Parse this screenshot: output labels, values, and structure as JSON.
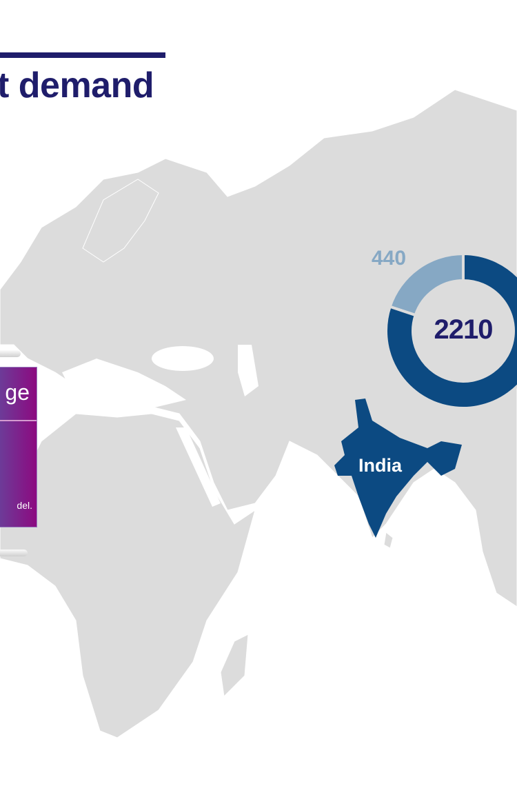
{
  "title": "t demand",
  "panel": {
    "heading": "ge",
    "footer": "del."
  },
  "donut": {
    "total_label": "2210",
    "segment_label": "440",
    "segments": [
      {
        "value": 440,
        "color": "#86a8c4"
      },
      {
        "value": 1770,
        "color": "#0c4a82"
      }
    ]
  },
  "region": {
    "name": "India",
    "highlight_color": "#0c4a82"
  },
  "colors": {
    "land": "#dcdcdc",
    "borders": "#ffffff",
    "title": "#1f1d6b",
    "panel": "#8c0a80"
  }
}
